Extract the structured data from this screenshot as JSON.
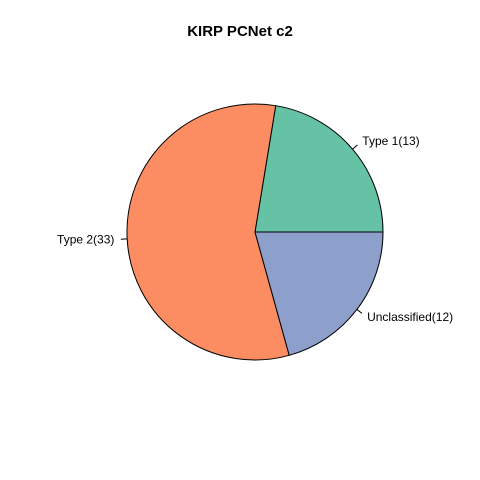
{
  "chart_data": {
    "type": "pie",
    "title": "KIRP PCNet c2",
    "slices": [
      {
        "label": "Type 1(13)",
        "value": 13,
        "color": "#66C2A5"
      },
      {
        "label": "Type 2(33)",
        "value": 33,
        "color": "#FC8D62"
      },
      {
        "label": "Unclassified(12)",
        "value": 12,
        "color": "#8DA0CB"
      }
    ]
  }
}
